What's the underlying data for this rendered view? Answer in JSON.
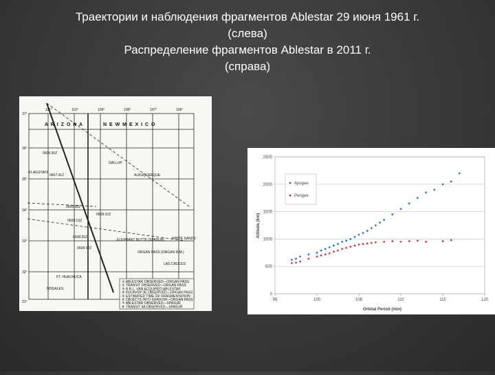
{
  "title_lines": [
    "Траектории и наблюдения фрагментов Ablestar  29 июня 1961 г.",
    "(слева)",
    "Распределение фрагментов Ablestar в 2011 г.",
    "(справа)"
  ],
  "map": {
    "states": [
      "A R I Z O N A",
      "N E W   M E X I C O"
    ],
    "cities": [
      "FLAGSTAFF",
      "GALLUP",
      "ALBUQUERQUE",
      "WHITE SANDS",
      "LAS CRUCES",
      "FT. HUACHUCA",
      "NOGALES",
      "ELEPHANT BUTTE (SPASUR)",
      "ORGAN PASS (ORGAN N.M.)"
    ],
    "times": [
      "0606:35Z",
      "0607:41Z",
      "0608:08Z",
      "0608:10Z",
      "0608:13Z",
      "0608:25Z",
      "0608:32Z"
    ],
    "latitudes": [
      "37°",
      "36°",
      "35°",
      "34°",
      "33°",
      "32°",
      "31°"
    ],
    "longitudes": [
      "111°",
      "110°",
      "109°",
      "108°",
      "107°",
      "106°"
    ],
    "legend": [
      "① ABLESTAR OBSERVED—ORGAN PASS",
      "② TRANSIT OBSERVED—ORGAN PASS",
      "③ N.R.L. VAN ACQUIRED ABLESTAR",
      "④ INJUN/SR 3E OBSERVED—ORGAN PASS",
      "⑤ ESTIMATED TIME OF FRAGMENTATION",
      "⑥ OBJECTS INTO SHADOW—ORGAN PASS",
      "⑦ ABLESTAR OBSERVED—SPASUR",
      "⑧ TRANSIT 4A OBSERVED—SPASUR"
    ]
  },
  "chart_data": {
    "type": "scatter",
    "x_label": "Orbital Period (min)",
    "y_label": "Altitude (km)",
    "xlim": [
      95,
      120
    ],
    "xticks": [
      95,
      100,
      105,
      110,
      115,
      120
    ],
    "ylim": [
      0,
      2500
    ],
    "yticks": [
      0,
      500,
      1000,
      1500,
      2000,
      2500
    ],
    "grid": true,
    "legend": "upper-left",
    "series": [
      {
        "name": "Apogee",
        "color": "#2e75c9",
        "x": [
          97,
          97.5,
          98,
          99,
          100,
          100.5,
          101,
          101.5,
          102,
          102.5,
          103,
          103.5,
          104,
          104.5,
          105,
          105.5,
          106,
          106.5,
          107,
          107.5,
          108,
          109,
          110,
          111,
          112,
          113,
          114,
          115,
          116,
          117
        ],
        "values": [
          620,
          640,
          680,
          720,
          750,
          790,
          820,
          850,
          880,
          910,
          950,
          970,
          1000,
          1040,
          1080,
          1110,
          1150,
          1200,
          1250,
          1300,
          1350,
          1450,
          1550,
          1650,
          1750,
          1850,
          1900,
          2000,
          2050,
          2200
        ]
      },
      {
        "name": "Perigee",
        "color": "#d43a3a",
        "x": [
          97,
          97.5,
          98,
          99,
          100,
          100.5,
          101,
          101.5,
          102,
          102.5,
          103,
          103.5,
          104,
          104.5,
          105,
          105.5,
          106,
          106.5,
          107,
          108,
          109,
          110,
          111,
          112,
          113,
          115,
          116
        ],
        "values": [
          560,
          570,
          590,
          640,
          680,
          700,
          720,
          740,
          770,
          790,
          820,
          840,
          860,
          880,
          900,
          910,
          920,
          930,
          940,
          950,
          960,
          950,
          960,
          970,
          950,
          960,
          980
        ]
      }
    ]
  }
}
